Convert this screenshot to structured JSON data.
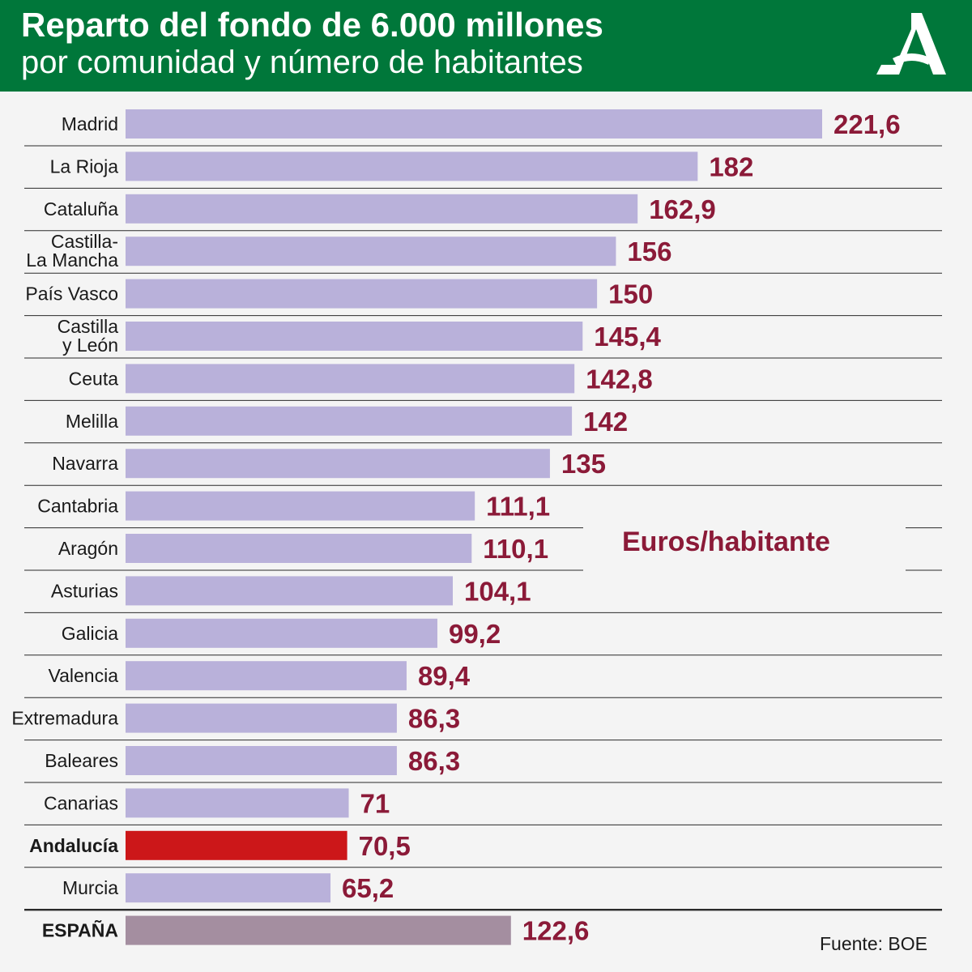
{
  "header": {
    "title": "Reparto del fondo de 6.000 millones",
    "subtitle": "por comunidad y número de habitantes",
    "logo_icon": "junta-de-andalucia-logo-icon",
    "background_color": "#00773a"
  },
  "chart_data": {
    "type": "bar",
    "orientation": "horizontal",
    "categories": [
      "Madrid",
      "La Rioja",
      "Cataluña",
      "Castilla-\nLa Mancha",
      "País Vasco",
      "Castilla\ny León",
      "Ceuta",
      "Melilla",
      "Navarra",
      "Cantabria",
      "Aragón",
      "Asturias",
      "Galicia",
      "Valencia",
      "Extremadura",
      "Baleares",
      "Canarias",
      "Andalucía",
      "Murcia",
      "ESPAÑA"
    ],
    "values": [
      221.6,
      182,
      162.9,
      156,
      150,
      145.4,
      142.8,
      142,
      135,
      111.1,
      110.1,
      104.1,
      99.2,
      89.4,
      86.3,
      86.3,
      71,
      70.5,
      65.2,
      122.6
    ],
    "value_labels": [
      "221,6",
      "182",
      "162,9",
      "156",
      "150",
      "145,4",
      "142,8",
      "142",
      "135",
      "111,1",
      "110,1",
      "104,1",
      "99,2",
      "89,4",
      "86,3",
      "86,3",
      "71",
      "70,5",
      "65,2",
      "122,6"
    ],
    "highlight": [
      "",
      "",
      "",
      "",
      "",
      "",
      "",
      "",
      "",
      "",
      "",
      "",
      "",
      "",
      "",
      "",
      "",
      "Andalucía",
      "",
      "ESPAÑA"
    ],
    "unit_label": "Euros/habitante",
    "xlim": [
      0,
      221.6
    ],
    "grid": false,
    "colors": {
      "bar": "#b9b1da",
      "highlight_bar": "#cc1719",
      "total_bar": "#a48ea0",
      "value_text": "#8b1a38",
      "total_value_text": "#8b1a38",
      "divider": "#2a2a2a"
    }
  },
  "footer": {
    "source": "Fuente: BOE"
  }
}
